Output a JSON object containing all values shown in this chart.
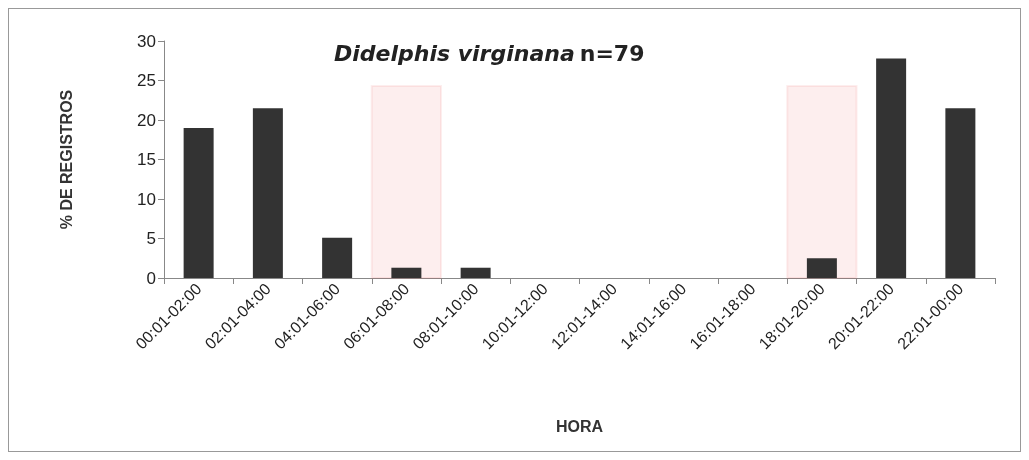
{
  "chart_data": {
    "type": "bar",
    "title": "Didelphis virginana n=79",
    "xlabel": "HORA",
    "ylabel": "% DE REGISTROS",
    "categories": [
      "00:01-02:00",
      "02:01-04:00",
      "04:01-06:00",
      "06:01-08:00",
      "08:01-10:00",
      "10:01-12:00",
      "12:01-14:00",
      "14:01-16:00",
      "16:01-18:00",
      "18:01-20:00",
      "20:01-22:00",
      "22:01-00:00"
    ],
    "values": [
      19,
      21.5,
      5.1,
      1.3,
      1.3,
      0,
      0,
      0,
      0,
      2.5,
      27.8,
      21.5
    ],
    "color": "#333333",
    "ylim": [
      0,
      30
    ],
    "yticks": [
      0,
      5,
      10,
      15,
      20,
      25,
      30
    ],
    "grid": false,
    "bands": [
      {
        "axis": "x",
        "from": "06:01-08:00",
        "to": "06:01-08:00",
        "color": "#e02020"
      },
      {
        "axis": "x",
        "from": "18:01-20:00",
        "to": "18:01-20:00",
        "color": "#e02020"
      }
    ]
  }
}
